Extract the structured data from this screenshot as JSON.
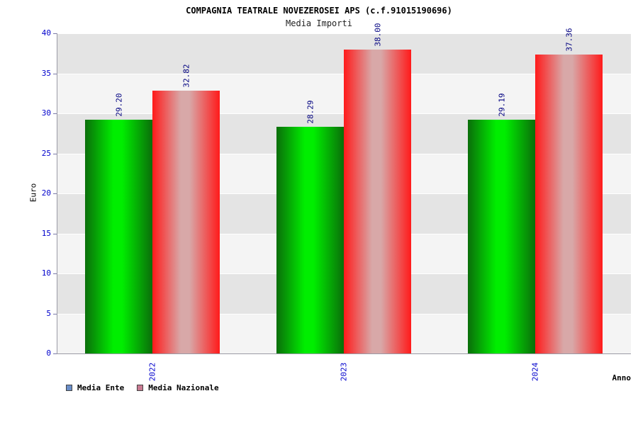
{
  "chart_data": {
    "type": "bar",
    "title": "COMPAGNIA TEATRALE NOVEZEROSEI APS (c.f.91015190696)",
    "subtitle": "Media Importi",
    "categories": [
      "2022",
      "2023",
      "2024"
    ],
    "series": [
      {
        "name": "Media Ente",
        "values": [
          29.2,
          28.29,
          29.19
        ],
        "bar_edge_color": "#0a6e0a",
        "bar_mid_color": "#00ee00",
        "legend_color": "#6a8ec8"
      },
      {
        "name": "Media Nazionale",
        "values": [
          32.82,
          38.0,
          37.36
        ],
        "bar_edge_color": "#ff1a1a",
        "bar_mid_color": "#d8a8a8",
        "legend_color": "#c87a92"
      }
    ],
    "xlabel": "Anno",
    "ylabel": "Euro",
    "ylim": [
      0,
      40
    ],
    "ytick_step": 5,
    "yticks": [
      0,
      5,
      10,
      15,
      20,
      25,
      30,
      35,
      40
    ],
    "grid": true,
    "legend_position": "bottom-left",
    "value_label_color": "#000080",
    "axis_tick_color": "#0000cc",
    "band_colors": [
      "#e4e4e4",
      "#f4f4f4"
    ]
  }
}
